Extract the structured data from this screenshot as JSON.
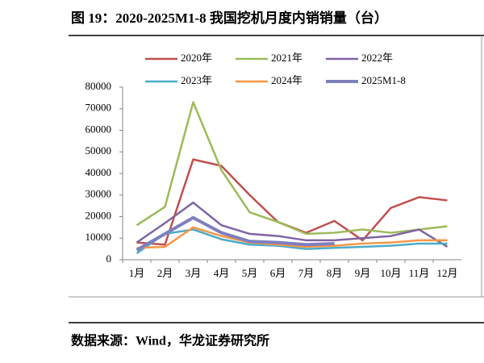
{
  "title": "图 19：2020-2025M1-8 我国挖机月度内销销量（台）",
  "source": "数据来源：Wind，华龙证券研究所",
  "chart_data": {
    "type": "line",
    "categories": [
      "1月",
      "2月",
      "3月",
      "4月",
      "5月",
      "6月",
      "7月",
      "8月",
      "9月",
      "10月",
      "11月",
      "12月"
    ],
    "series": [
      {
        "name": "2020年",
        "color": "#c0504d",
        "values": [
          8000,
          7000,
          46500,
          43500,
          30000,
          17500,
          12500,
          18000,
          9000,
          24000,
          29000,
          27500
        ]
      },
      {
        "name": "2021年",
        "color": "#9bbb59",
        "values": [
          16000,
          24500,
          73000,
          41500,
          22000,
          17500,
          12000,
          12500,
          14000,
          12500,
          14000,
          15500
        ]
      },
      {
        "name": "2022年",
        "color": "#8064a2",
        "values": [
          8000,
          17000,
          26500,
          16000,
          12000,
          11000,
          9000,
          9000,
          10000,
          11000,
          14000,
          6000
        ]
      },
      {
        "name": "2023年",
        "color": "#4bacc6",
        "values": [
          3000,
          12000,
          14000,
          9500,
          7000,
          6500,
          5000,
          5500,
          6000,
          6500,
          7500,
          7500
        ]
      },
      {
        "name": "2024年",
        "color": "#f79646",
        "values": [
          5500,
          6000,
          15000,
          11000,
          8000,
          7000,
          6000,
          6500,
          7500,
          8000,
          9000,
          9000
        ]
      },
      {
        "name": "2025M1-8",
        "color": "#7f7fbf",
        "values": [
          4500,
          12000,
          19500,
          12500,
          8500,
          8000,
          7000,
          7500,
          null,
          null,
          null,
          null
        ]
      }
    ],
    "ylim": [
      0,
      80000
    ],
    "yticks": [
      0,
      10000,
      20000,
      30000,
      40000,
      50000,
      60000,
      70000,
      80000
    ]
  }
}
